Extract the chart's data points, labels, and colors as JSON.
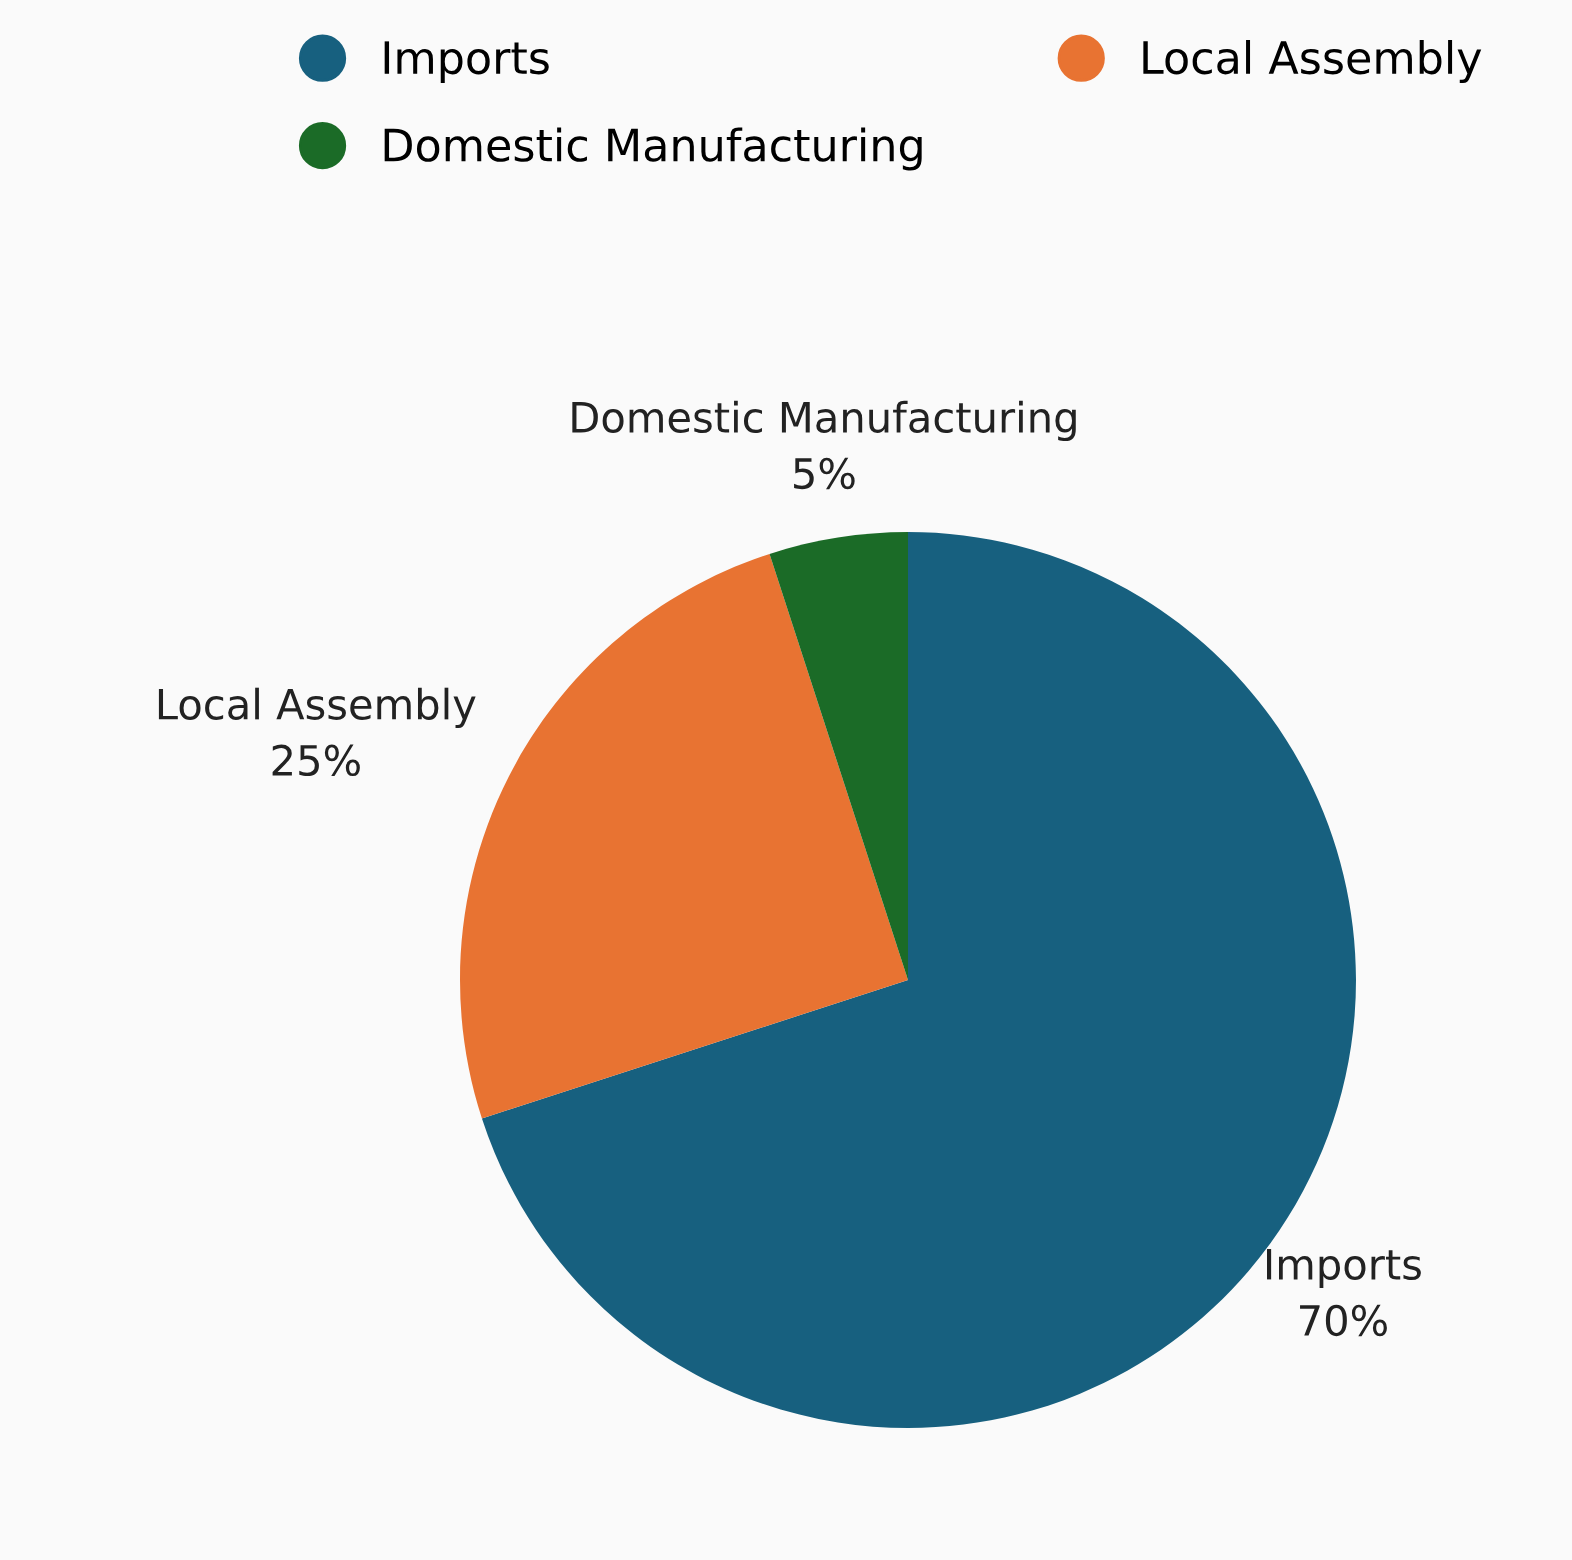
{
  "chart_data": {
    "type": "pie",
    "categories": [
      "Imports",
      "Local Assembly",
      "Domestic Manufacturing"
    ],
    "values": [
      70,
      25,
      5
    ],
    "colors": [
      "#17607f",
      "#e87332",
      "#1b6b27"
    ],
    "value_labels": [
      "70%",
      "25%",
      "5%"
    ],
    "legend": "top"
  }
}
